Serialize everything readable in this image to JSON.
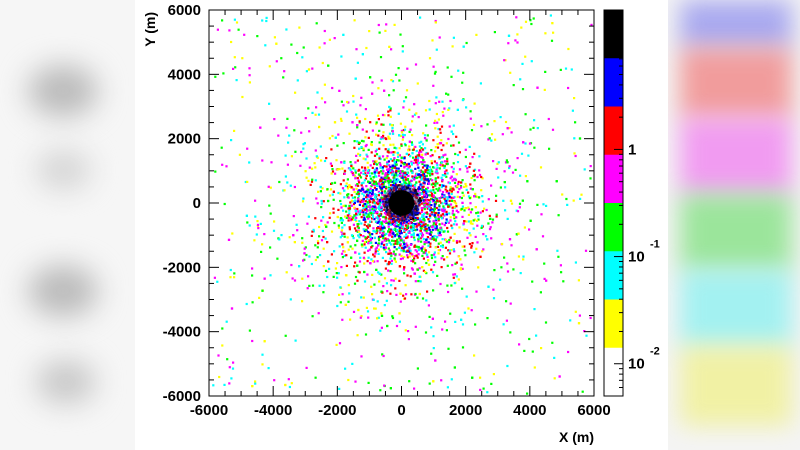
{
  "chart_data": {
    "type": "heatmap",
    "title": "",
    "xlabel": "X (m)",
    "ylabel": "Y (m)",
    "xlim": [
      -6000,
      6000
    ],
    "ylim": [
      -6000,
      6000
    ],
    "x_ticks": [
      "-6000",
      "-4000",
      "-2000",
      "0",
      "2000",
      "4000",
      "6000"
    ],
    "y_ticks": [
      "-6000",
      "-4000",
      "-2000",
      "0",
      "2000",
      "4000",
      "6000"
    ],
    "x_tick_values": [
      -6000,
      -4000,
      -2000,
      0,
      2000,
      4000,
      6000
    ],
    "y_tick_values": [
      -6000,
      -4000,
      -2000,
      0,
      2000,
      4000,
      6000
    ],
    "colorbar": {
      "scale": "log",
      "range": [
        0.005,
        20
      ],
      "labels": [
        {
          "text": "1",
          "value": 1
        },
        {
          "text": "10",
          "exponent": "-1",
          "value": 0.1
        },
        {
          "text": "10",
          "exponent": "-2",
          "value": 0.01
        }
      ],
      "colors_top_to_bottom": [
        "#000000",
        "#0000ff",
        "#ff0000",
        "#ff00ff",
        "#00ff00",
        "#00ffff",
        "#ffff00",
        "#ffffff"
      ]
    },
    "distribution": {
      "center": [
        0,
        0
      ],
      "core_radius_m": 400,
      "extent_m": 6000,
      "description_density": "radially decreasing from center"
    },
    "grid": false,
    "legend": "colorbar-right"
  },
  "colors": {
    "background": "#ffffff",
    "frame": "#000000"
  }
}
